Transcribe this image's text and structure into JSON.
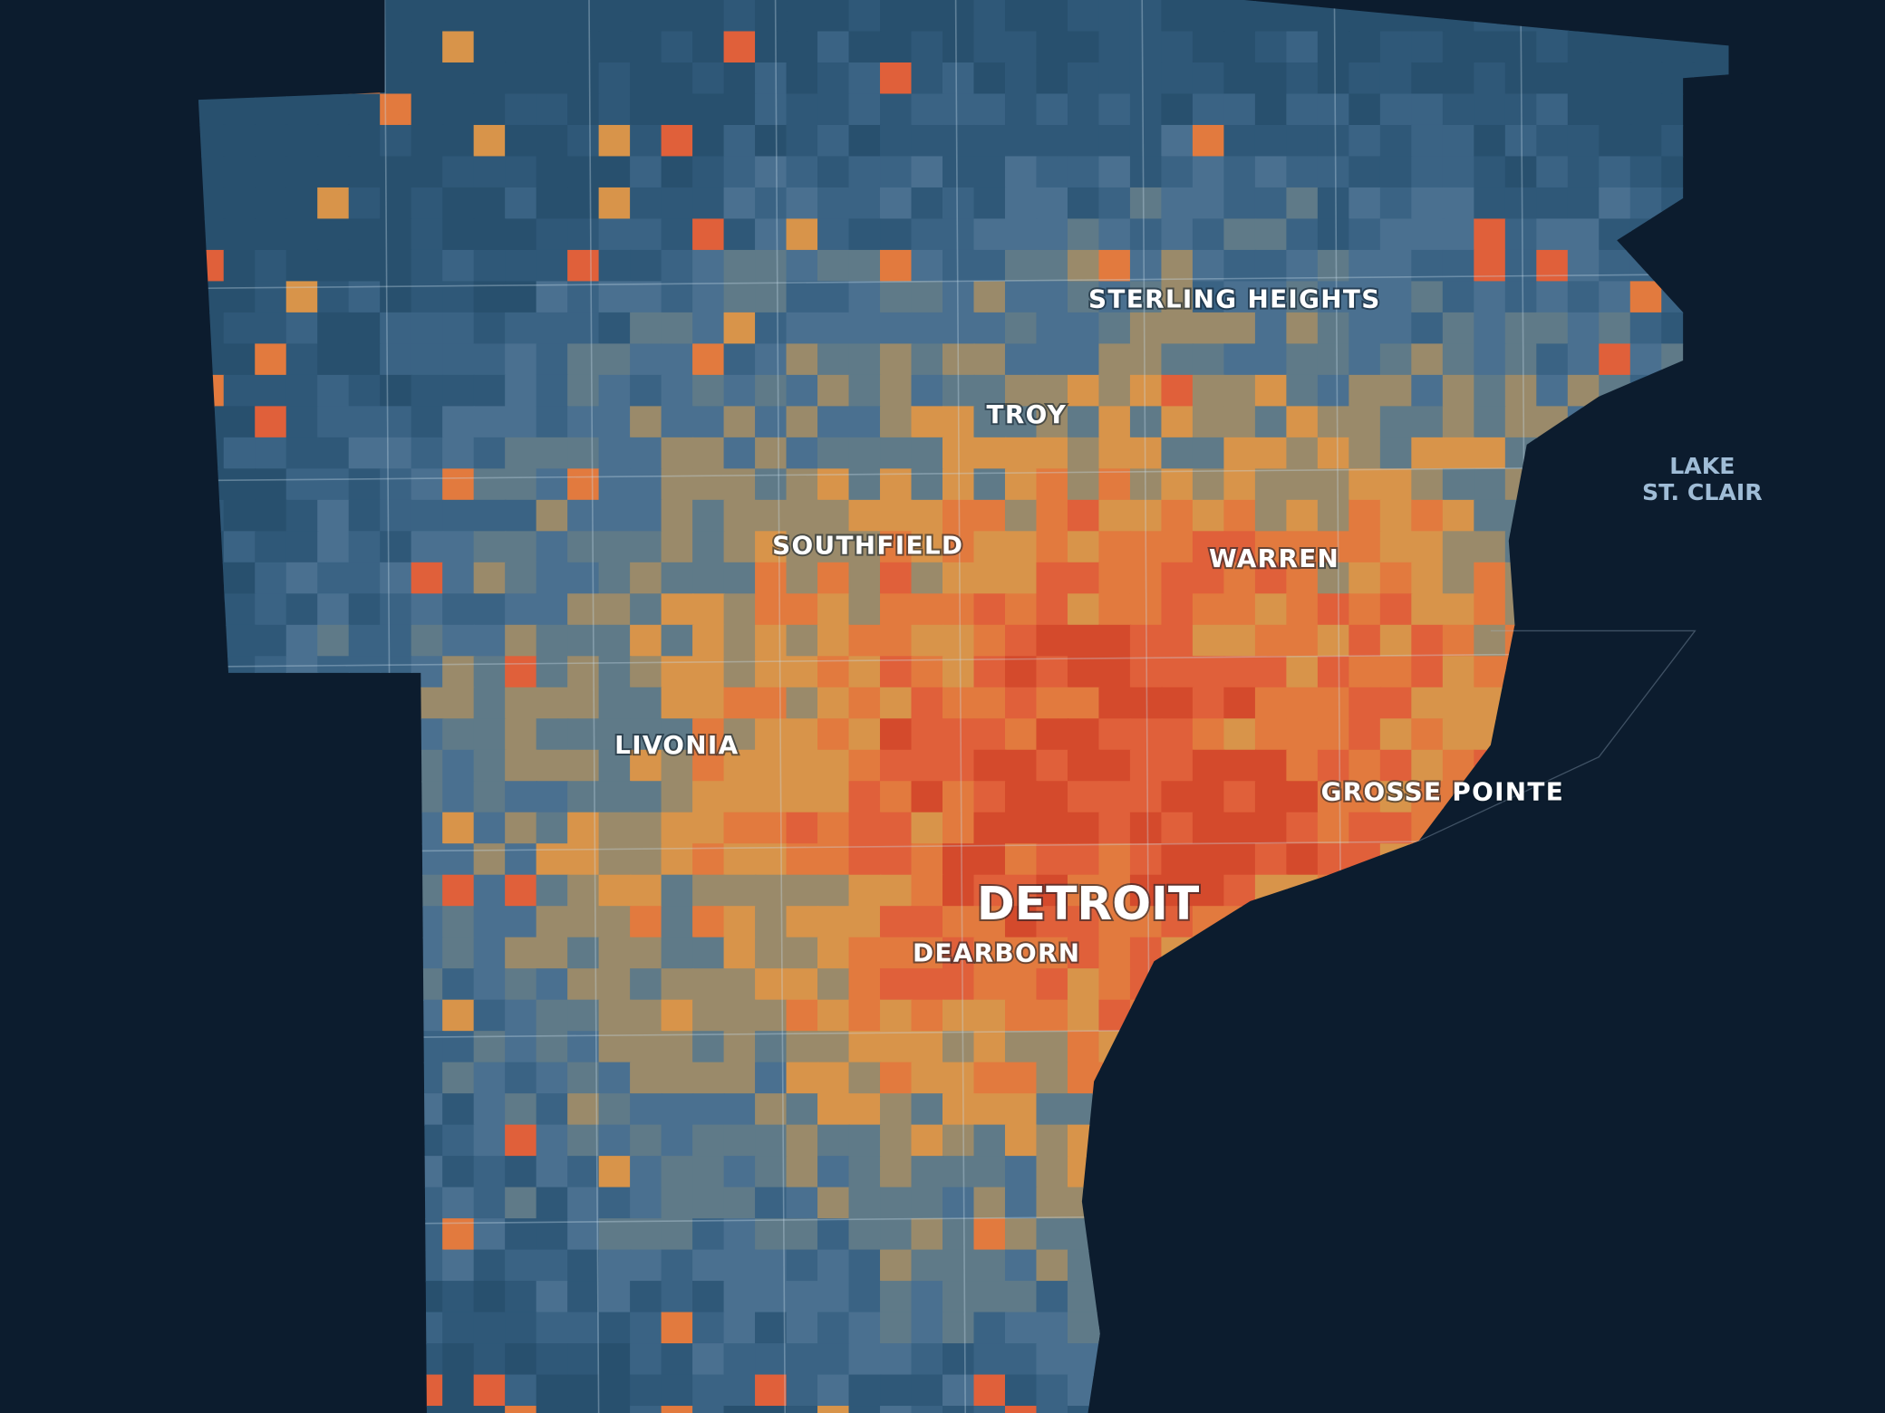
{
  "map": {
    "labels": {
      "sterling_heights": "STERLING HEIGHTS",
      "troy": "TROY",
      "southfield": "SOUTHFIELD",
      "warren": "WARREN",
      "livonia": "LIVONIA",
      "grosse_pointe": "GROSSE POINTE",
      "detroit": "DETROIT",
      "dearborn": "DEARBORN",
      "lake_line_1": "LAKE",
      "lake_line_2": "ST. CLAIR"
    }
  }
}
